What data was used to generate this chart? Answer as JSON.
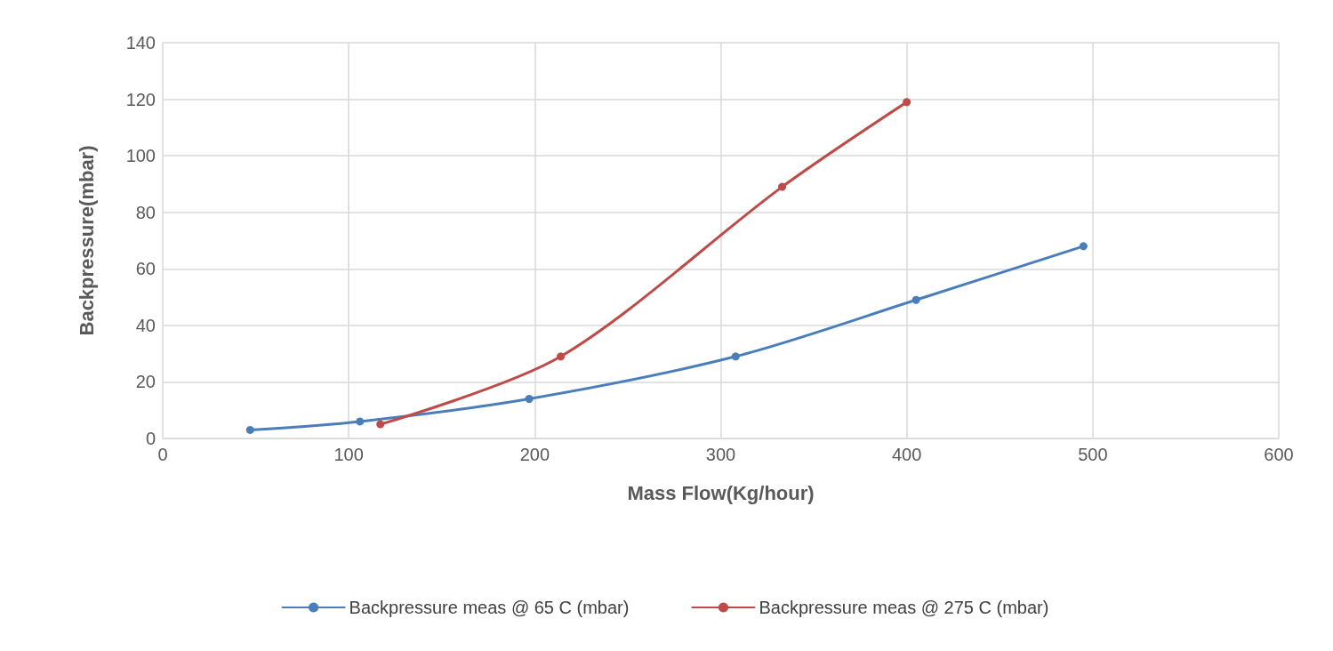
{
  "chart_data": {
    "type": "line",
    "xlabel": "Mass Flow(Kg/hour)",
    "ylabel": "Backpressure(mbar)",
    "xlim": [
      0,
      600
    ],
    "xticks": [
      0,
      100,
      200,
      300,
      400,
      500,
      600
    ],
    "ylim": [
      0,
      140
    ],
    "yticks": [
      0,
      20,
      40,
      60,
      80,
      100,
      120,
      140
    ],
    "grid": true,
    "legend": "bottom",
    "marker": "circle",
    "line_style": "solid",
    "series": [
      {
        "name": "Backpressure meas @ 65 C (mbar)",
        "color": "#4a7ebb",
        "x": [
          47,
          106,
          197,
          308,
          405,
          495
        ],
        "values": [
          3,
          6,
          14,
          29,
          49,
          68
        ]
      },
      {
        "name": "Backpressure meas @ 275 C (mbar)",
        "color": "#be4b48",
        "x": [
          117,
          214,
          333,
          400
        ],
        "values": [
          5,
          29,
          89,
          119
        ]
      }
    ]
  }
}
